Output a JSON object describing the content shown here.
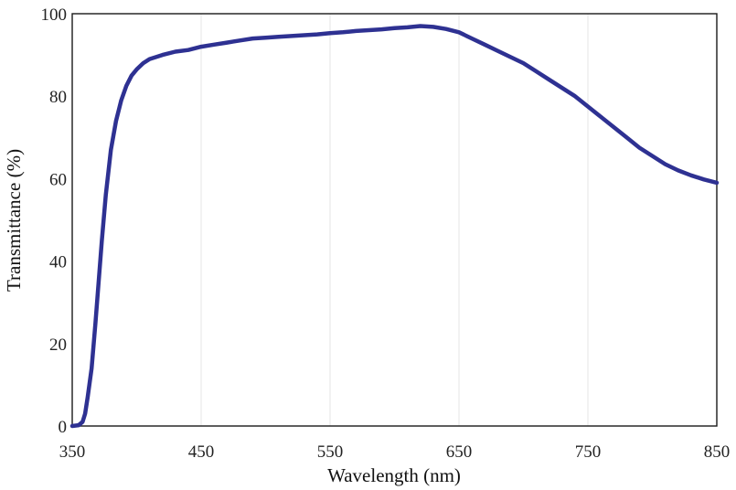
{
  "chart_data": {
    "type": "line",
    "title": "",
    "xlabel": "Wavelength (nm)",
    "ylabel": "Transmittance (%)",
    "xlim": [
      350,
      850
    ],
    "ylim": [
      0,
      100
    ],
    "xticks": [
      "350",
      "450",
      "550",
      "650",
      "750",
      "850"
    ],
    "yticks": [
      "0",
      "20",
      "40",
      "60",
      "80",
      "100"
    ],
    "grid": "vertical",
    "legend": "none",
    "colors": {
      "series": "#2e3192",
      "frame": "#1a1a1a",
      "grid": "#e6e6e6"
    },
    "series": [
      {
        "x": [
          350,
          355,
          358,
          360,
          362,
          365,
          368,
          370,
          373,
          376,
          380,
          384,
          388,
          392,
          396,
          400,
          405,
          410,
          415,
          420,
          430,
          440,
          450,
          460,
          470,
          480,
          490,
          500,
          510,
          520,
          530,
          540,
          550,
          560,
          570,
          580,
          590,
          600,
          610,
          620,
          630,
          640,
          650,
          660,
          670,
          680,
          690,
          700,
          710,
          720,
          730,
          740,
          750,
          760,
          770,
          780,
          790,
          800,
          810,
          820,
          830,
          840,
          850
        ],
        "y": [
          0,
          0.2,
          1,
          3,
          7,
          14,
          25,
          33,
          45,
          56,
          67,
          74,
          79,
          82.5,
          85,
          86.5,
          88,
          89,
          89.5,
          90,
          90.8,
          91.2,
          92,
          92.5,
          93,
          93.5,
          94,
          94.2,
          94.4,
          94.6,
          94.8,
          95,
          95.3,
          95.5,
          95.8,
          96,
          96.2,
          96.5,
          96.7,
          97,
          96.8,
          96.3,
          95.5,
          94,
          92.5,
          91,
          89.5,
          88,
          86,
          84,
          82,
          80,
          77.5,
          75,
          72.5,
          70,
          67.5,
          65.5,
          63.5,
          62,
          60.8,
          59.8,
          59
        ]
      }
    ]
  }
}
